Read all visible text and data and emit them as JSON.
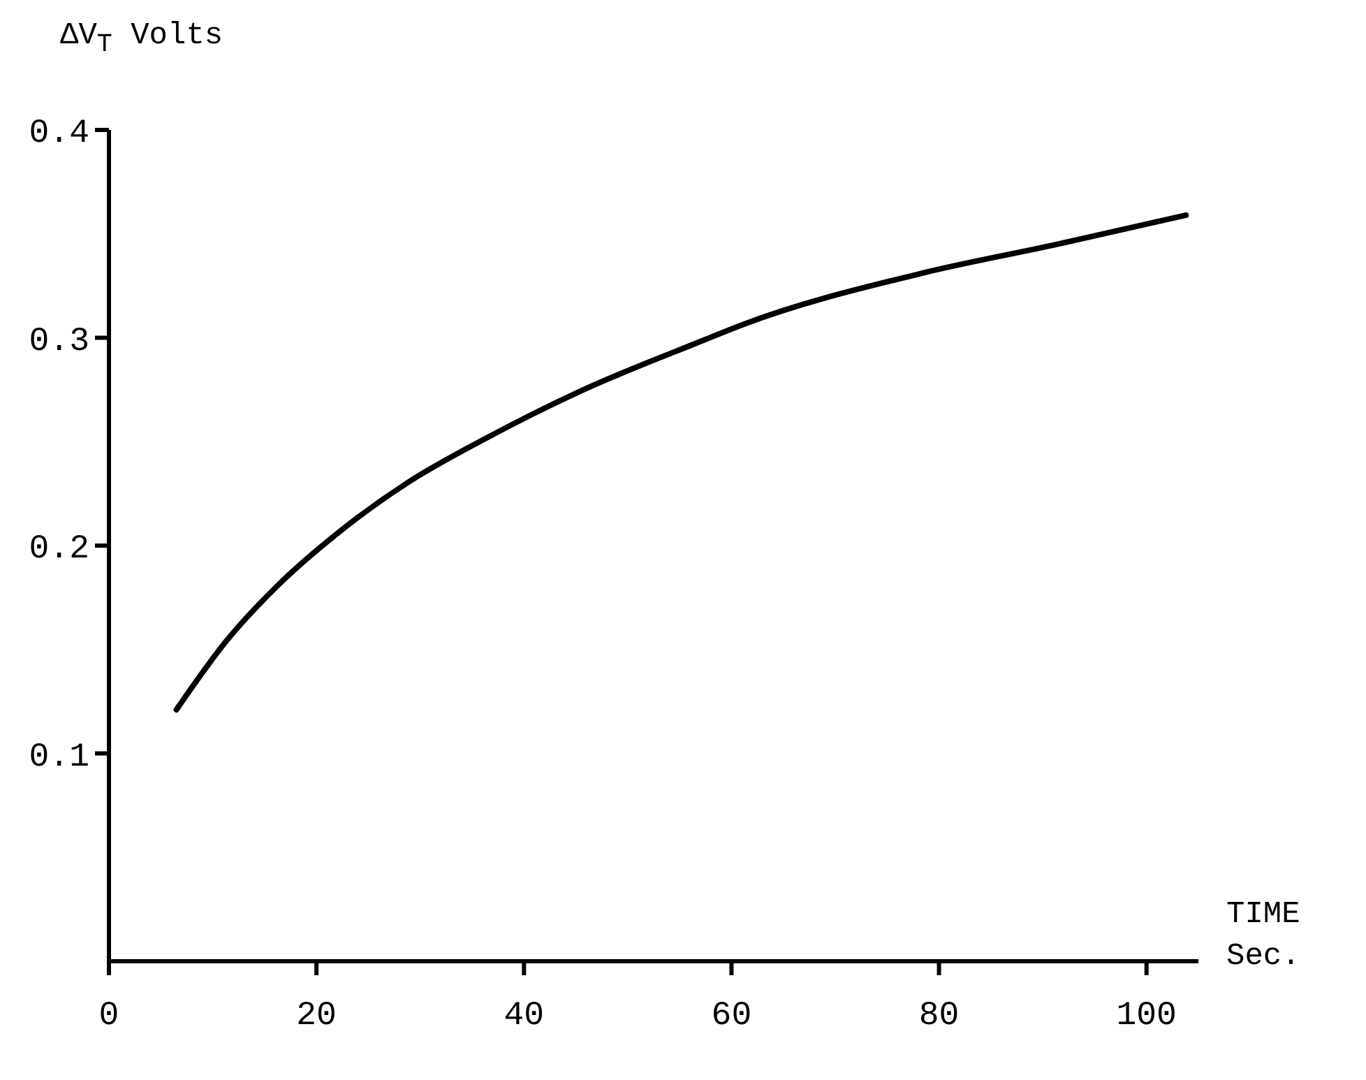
{
  "chart_data": {
    "type": "line",
    "ylabel": "ΔV$_{T}$ Volts",
    "xlabel": "TIME\nSec.",
    "x": [
      6.5,
      11.3,
      16.1,
      21.8,
      28.7,
      36.1,
      45.3,
      57.4,
      60.9,
      78.3,
      91.4,
      103.8
    ],
    "series": [
      {
        "color": "#000000",
        "values": [
          0.121,
          0.154,
          0.18,
          0.205,
          0.23,
          0.251,
          0.274,
          0.299,
          0.306,
          0.331,
          0.345,
          0.359
        ]
      }
    ],
    "xlim": [
      0,
      105
    ],
    "xticks": [
      0,
      20,
      40,
      60,
      80,
      100
    ],
    "ylim": [
      0,
      0.4
    ],
    "yticks": [
      {
        "value": 0.1,
        "label": "0.1"
      },
      {
        "value": 0.2,
        "label": "0.2"
      },
      {
        "value": 0.3,
        "label": "0.3"
      },
      {
        "value": 0.4,
        "label": "0.4"
      }
    ],
    "grid": false,
    "legend": false,
    "marker": "none",
    "line_style": "solid"
  }
}
